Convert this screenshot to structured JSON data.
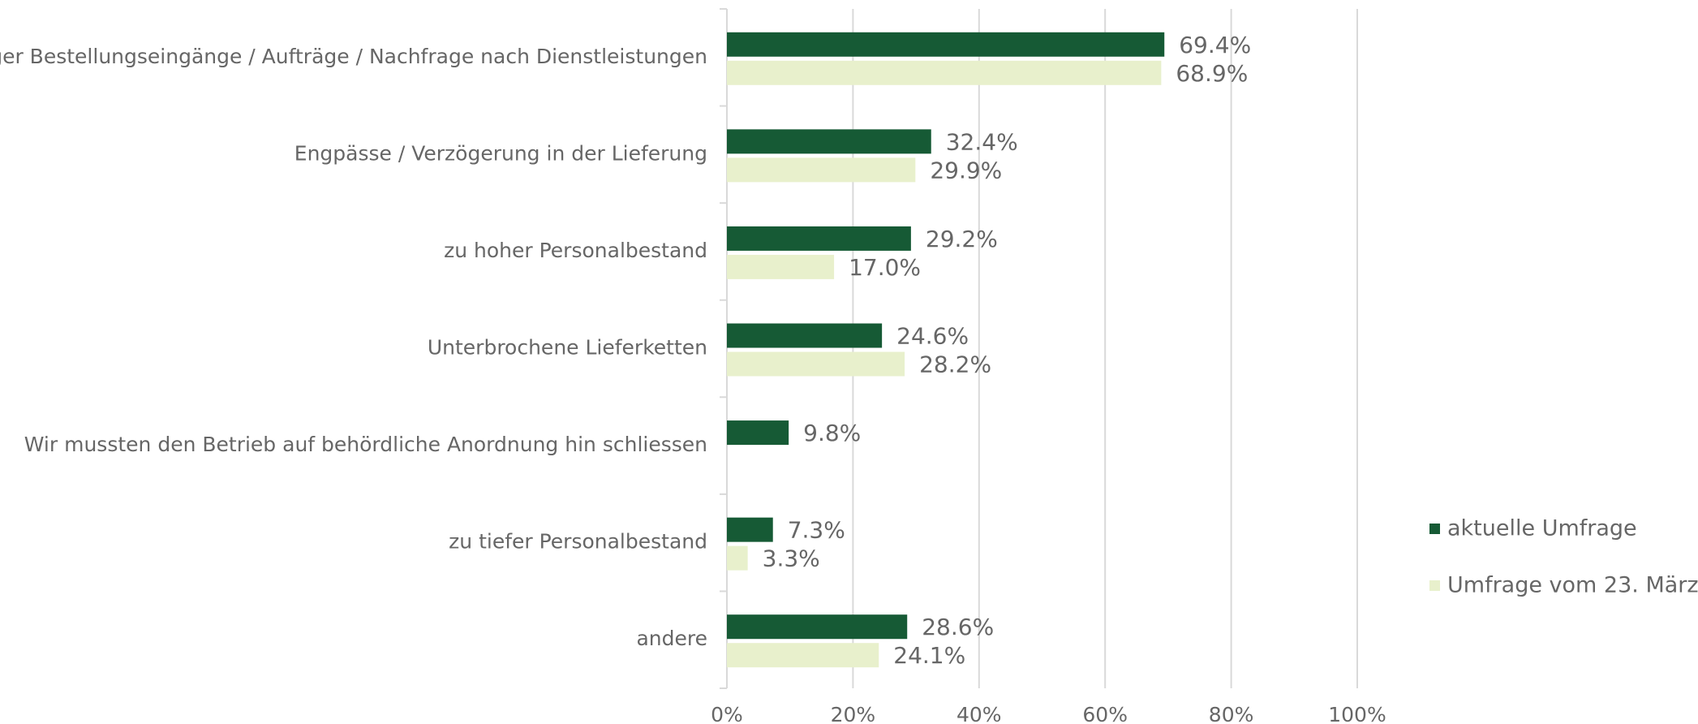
{
  "chart_data": {
    "type": "bar",
    "orientation": "horizontal",
    "categories": [
      "weniger Bestellungseingänge / Aufträge / Nachfrage nach Dienstleistungen",
      "Engpässe / Verzögerung in der Lieferung",
      "zu hoher Personalbestand",
      "Unterbrochene Lieferketten",
      "Wir mussten den Betrieb auf behördliche Anordnung hin schliessen",
      "zu tiefer Personalbestand",
      "andere"
    ],
    "series": [
      {
        "name": "aktuelle Umfrage",
        "color": "#165a35",
        "values": [
          69.4,
          32.4,
          29.2,
          24.6,
          9.8,
          7.3,
          28.6
        ],
        "value_labels": [
          "69.4%",
          "32.4%",
          "29.2%",
          "24.6%",
          "9.8%",
          "7.3%",
          "28.6%"
        ]
      },
      {
        "name": "Umfrage vom 23. März",
        "color": "#e8f0cc",
        "values": [
          68.9,
          29.9,
          17.0,
          28.2,
          null,
          3.3,
          24.1
        ],
        "value_labels": [
          "68.9%",
          "29.9%",
          "17.0%",
          "28.2%",
          null,
          "3.3%",
          "24.1%"
        ]
      }
    ],
    "xlim": [
      0,
      100
    ],
    "xticks": [
      {
        "value": 0,
        "label": "0%"
      },
      {
        "value": 20,
        "label": "20%"
      },
      {
        "value": 40,
        "label": "40%"
      },
      {
        "value": 60,
        "label": "60%"
      },
      {
        "value": 80,
        "label": "80%"
      },
      {
        "value": 100,
        "label": "100%"
      }
    ],
    "grid": true,
    "legend": "right"
  }
}
